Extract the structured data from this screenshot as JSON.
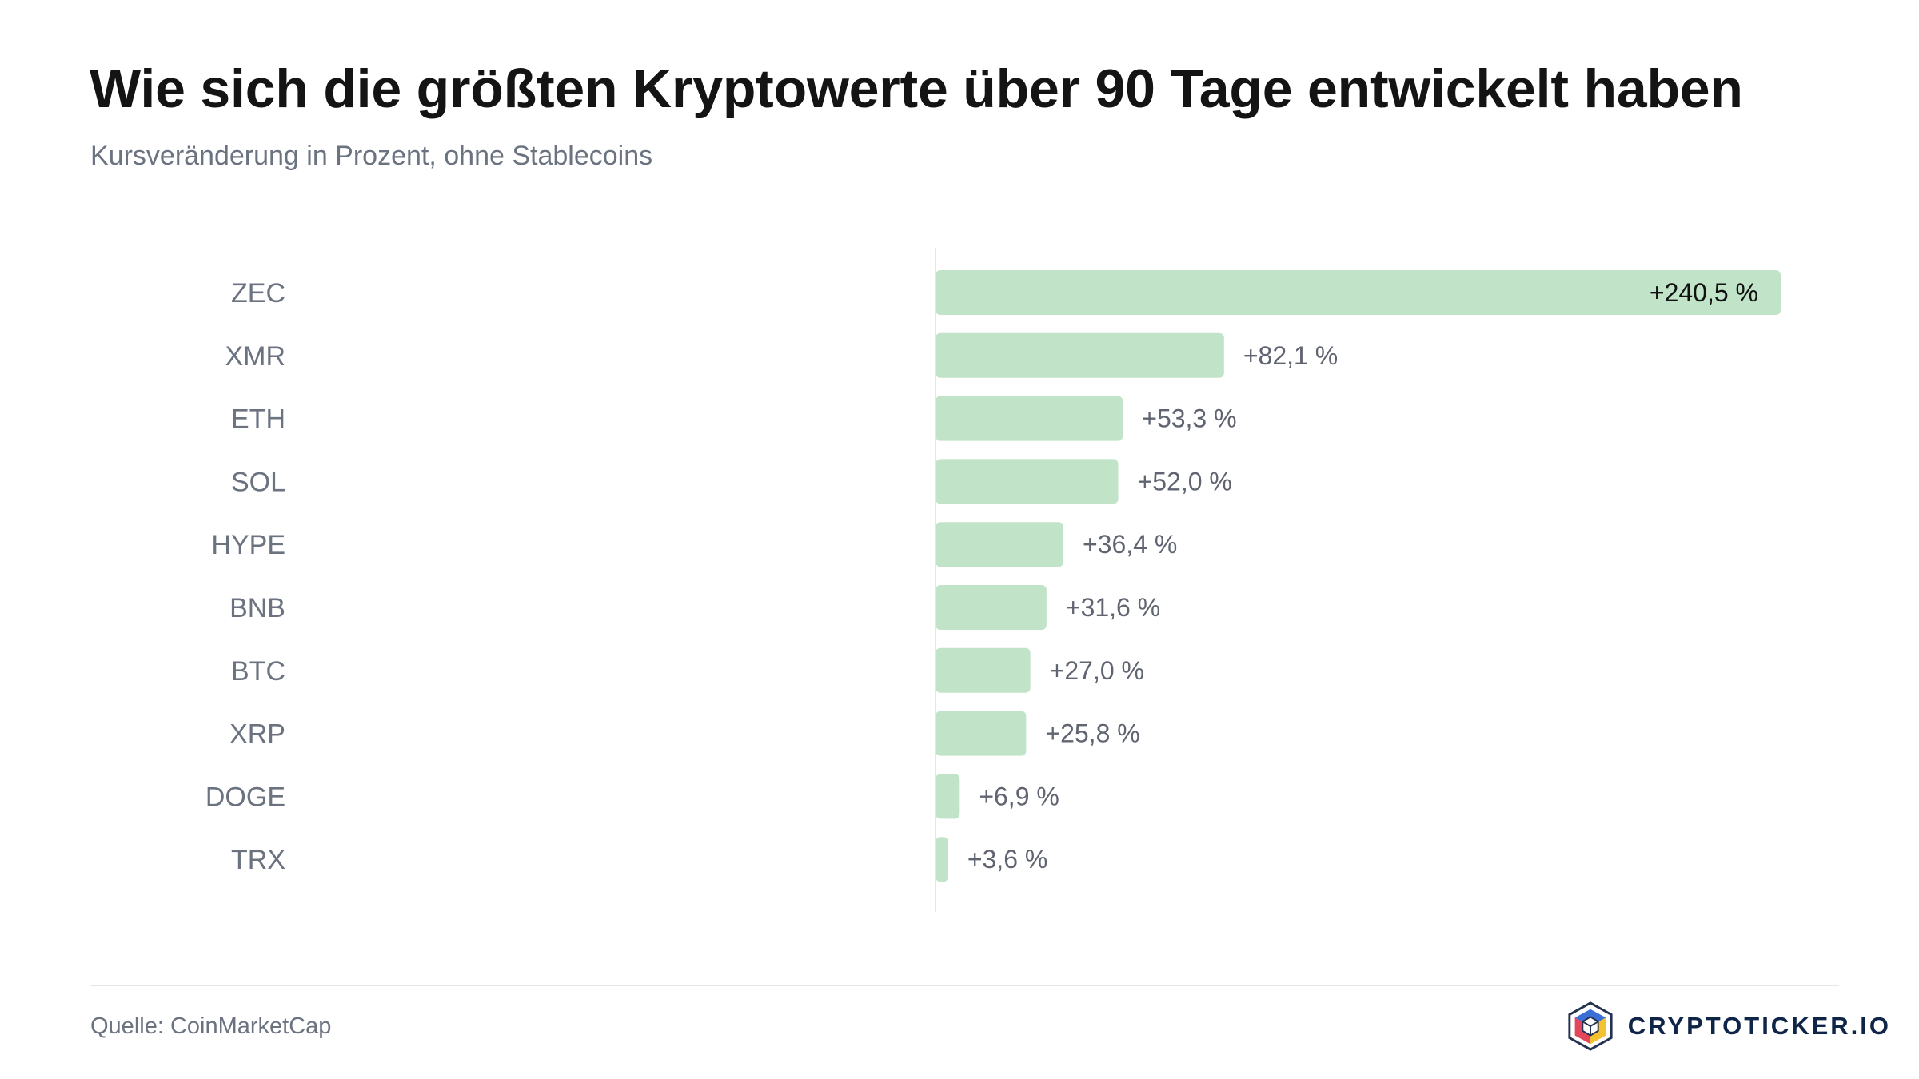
{
  "header": {
    "title": "Wie sich die größten Kryptowerte über 90 Tage entwickelt haben",
    "subtitle": "Kursveränderung in Prozent, ohne Stablecoins"
  },
  "footer": {
    "source": "Quelle: CoinMarketCap",
    "brand": "CRYPTOTICKER.IO",
    "brand_icon": "cube-logo-icon"
  },
  "colors": {
    "bar": "#c1e4c8",
    "category_label": "#6b7280",
    "value_label": "#5f6470",
    "inside_label": "#111111",
    "axis_line": "#e5e7eb"
  },
  "chart_data": {
    "type": "bar",
    "orientation": "horizontal",
    "categories": [
      "ZEC",
      "XMR",
      "ETH",
      "SOL",
      "HYPE",
      "BNB",
      "BTC",
      "XRP",
      "DOGE",
      "TRX"
    ],
    "values": [
      240.5,
      82.1,
      53.3,
      52.0,
      36.4,
      31.6,
      27.0,
      25.8,
      6.9,
      3.6
    ],
    "labels": [
      "+240,5 %",
      "+82,1 %",
      "+53,3 %",
      "+52,0 %",
      "+36,4 %",
      "+31,6 %",
      "+27,0 %",
      "+25,8 %",
      "+6,9 %",
      "+3,6 %"
    ],
    "xlim": [
      0,
      240.5
    ],
    "grid": false,
    "legend": "none",
    "title": "Wie sich die größten Kryptowerte über 90 Tage entwickelt haben",
    "subtitle": "Kursveränderung in Prozent, ohne Stablecoins"
  }
}
